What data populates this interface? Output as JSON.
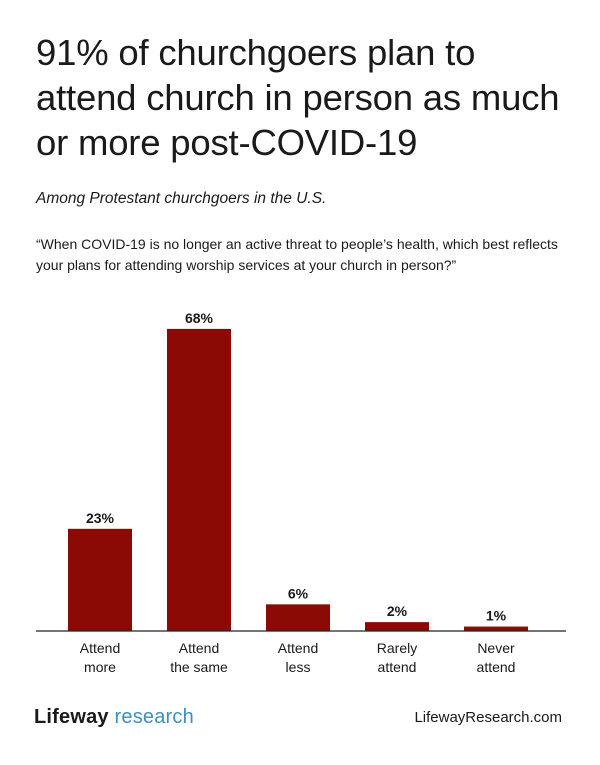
{
  "header": {
    "title": "91% of churchgoers plan to attend church in person as much or more post-COVID-19",
    "subtitle": "Among Protestant churchgoers in the U.S.",
    "question": "“When COVID-19 is no longer an active threat to people’s health, which best reflects your plans for attending worship services at your church in person?”"
  },
  "chart_data": {
    "type": "bar",
    "categories": [
      [
        "Attend",
        "more"
      ],
      [
        "Attend",
        "the same"
      ],
      [
        "Attend",
        "less"
      ],
      [
        "Rarely",
        "attend"
      ],
      [
        "Never",
        "attend"
      ]
    ],
    "values": [
      23,
      68,
      6,
      2,
      1
    ],
    "value_labels": [
      "23%",
      "68%",
      "6%",
      "2%",
      "1%"
    ],
    "title": "91% of churchgoers plan to attend church in person as much or more post-COVID-19",
    "xlabel": "",
    "ylabel": "",
    "ylim": [
      0,
      70
    ],
    "grid": false,
    "colors": {
      "bar": "#8b0a05",
      "axis": "#222222"
    }
  },
  "footer": {
    "logo_brand": "Lifeway",
    "logo_sub": "research",
    "url": "LifewayResearch.com"
  }
}
